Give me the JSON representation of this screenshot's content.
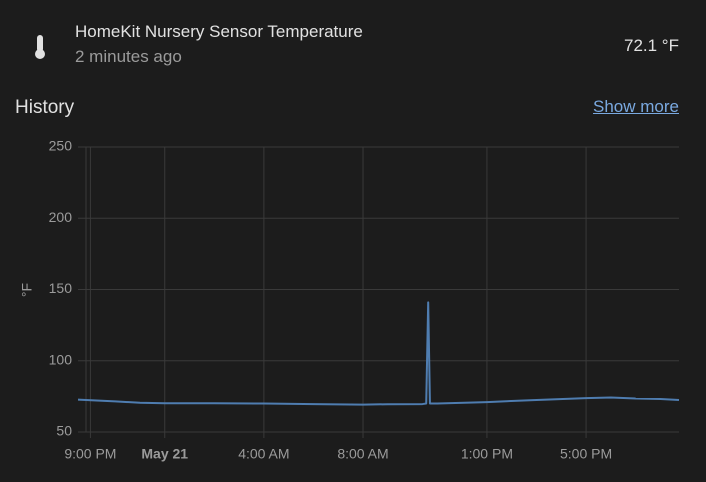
{
  "header": {
    "title": "HomeKit Nursery Sensor Temperature",
    "subtitle": "2 minutes ago",
    "state": "72.1 °F"
  },
  "history": {
    "title": "History",
    "link": "Show more"
  },
  "chart_data": {
    "type": "line",
    "y_label": "°F",
    "x": [
      -3.5,
      -2,
      -1,
      0,
      2,
      4,
      6,
      8,
      9,
      10.4,
      10.55,
      10.63,
      10.7,
      11,
      13,
      15,
      17,
      18,
      19,
      20,
      20.75
    ],
    "series": [
      {
        "name": "HomeKit Nursery Sensor Temperature",
        "color": "#4f7db0",
        "values": [
          72.7,
          71.5,
          70.5,
          70.2,
          70.2,
          70,
          69.6,
          69.2,
          69.5,
          69.6,
          70,
          141,
          70,
          70,
          71,
          72.5,
          73.8,
          74.2,
          73.5,
          73.2,
          72.5
        ]
      }
    ],
    "xlim": [
      -3.5,
      20.75
    ],
    "xticks": [
      {
        "value": -3,
        "label": "9:00 PM"
      },
      {
        "value": 0,
        "label": "May 21"
      },
      {
        "value": 4,
        "label": "4:00 AM"
      },
      {
        "value": 8,
        "label": "8:00 AM"
      },
      {
        "value": 13,
        "label": "1:00 PM"
      },
      {
        "value": 17,
        "label": "5:00 PM"
      }
    ],
    "ylim": [
      50,
      250
    ],
    "yticks": [
      50,
      100,
      150,
      200,
      250
    ],
    "grid": true
  }
}
